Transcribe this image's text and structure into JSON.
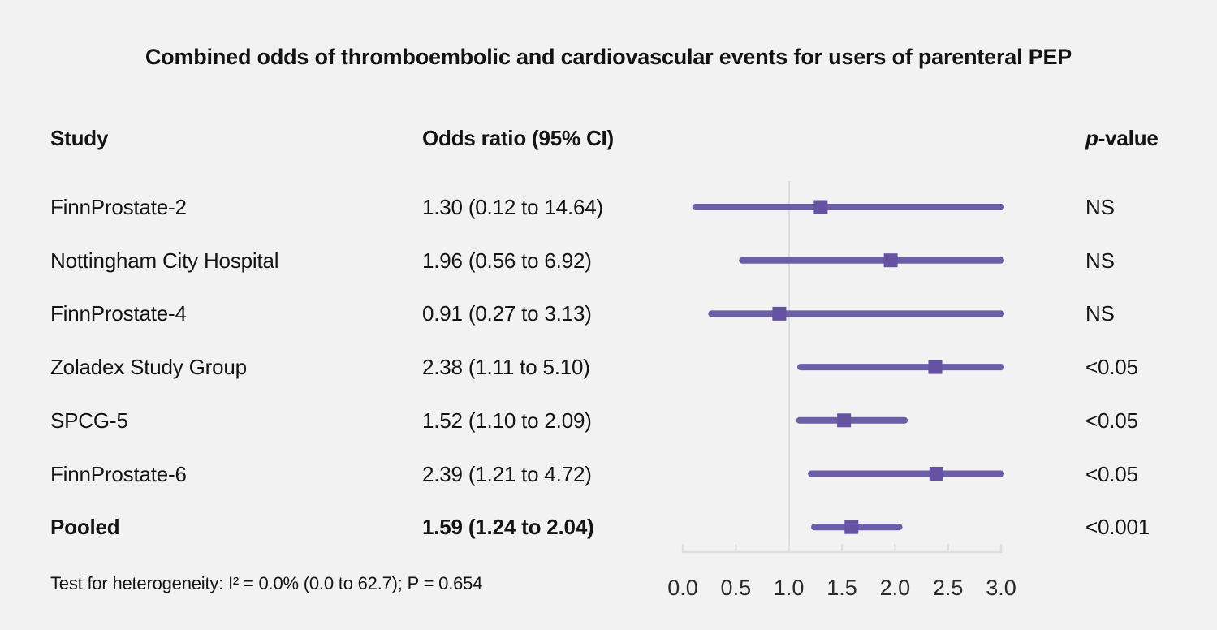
{
  "title": "Combined odds of thromboembolic and cardiovascular events for users of parenteral PEP",
  "columns": {
    "study": "Study",
    "odds_ratio": "Odds ratio (95% CI)",
    "p_italic": "p",
    "p_rest": "-value"
  },
  "footer": "Test for heterogeneity: I² = 0.0% (0.0 to 62.7); P = 0.654",
  "colors": {
    "background": "#f2f2f2",
    "text": "#141414",
    "ci_line": "#6c5ea7",
    "marker": "#6652a2",
    "ref_line": "#d8dde2",
    "axis": "#dcdfe4"
  },
  "chart_data": {
    "type": "forest",
    "title": "Combined odds of thromboembolic and cardiovascular events for users of parenteral PEP",
    "x_ticks": [
      "0.0",
      "0.5",
      "1.0",
      "1.5",
      "2.0",
      "2.5",
      "3.0"
    ],
    "xlim": [
      0.0,
      3.0
    ],
    "ref_line_x": 1.0,
    "rows": [
      {
        "study": "FinnProstate-2",
        "or_label": "1.30 (0.12 to 14.64)",
        "or": 1.3,
        "ci_low": 0.12,
        "ci_high": 14.64,
        "p": "NS",
        "bold": false
      },
      {
        "study": "Nottingham City Hospital",
        "or_label": "1.96 (0.56 to 6.92)",
        "or": 1.96,
        "ci_low": 0.56,
        "ci_high": 6.92,
        "p": "NS",
        "bold": false
      },
      {
        "study": "FinnProstate-4",
        "or_label": "0.91 (0.27 to 3.13)",
        "or": 0.91,
        "ci_low": 0.27,
        "ci_high": 3.13,
        "p": "NS",
        "bold": false
      },
      {
        "study": "Zoladex Study Group",
        "or_label": "2.38 (1.11 to 5.10)",
        "or": 2.38,
        "ci_low": 1.11,
        "ci_high": 5.1,
        "p": "<0.05",
        "bold": false
      },
      {
        "study": "SPCG-5",
        "or_label": "1.52 (1.10 to 2.09)",
        "or": 1.52,
        "ci_low": 1.1,
        "ci_high": 2.09,
        "p": "<0.05",
        "bold": false
      },
      {
        "study": "FinnProstate-6",
        "or_label": "2.39 (1.21 to 4.72)",
        "or": 2.39,
        "ci_low": 1.21,
        "ci_high": 4.72,
        "p": "<0.05",
        "bold": false
      },
      {
        "study": "Pooled",
        "or_label": "1.59 (1.24 to 2.04)",
        "or": 1.59,
        "ci_low": 1.24,
        "ci_high": 2.04,
        "p": "<0.001",
        "bold": true
      }
    ]
  }
}
